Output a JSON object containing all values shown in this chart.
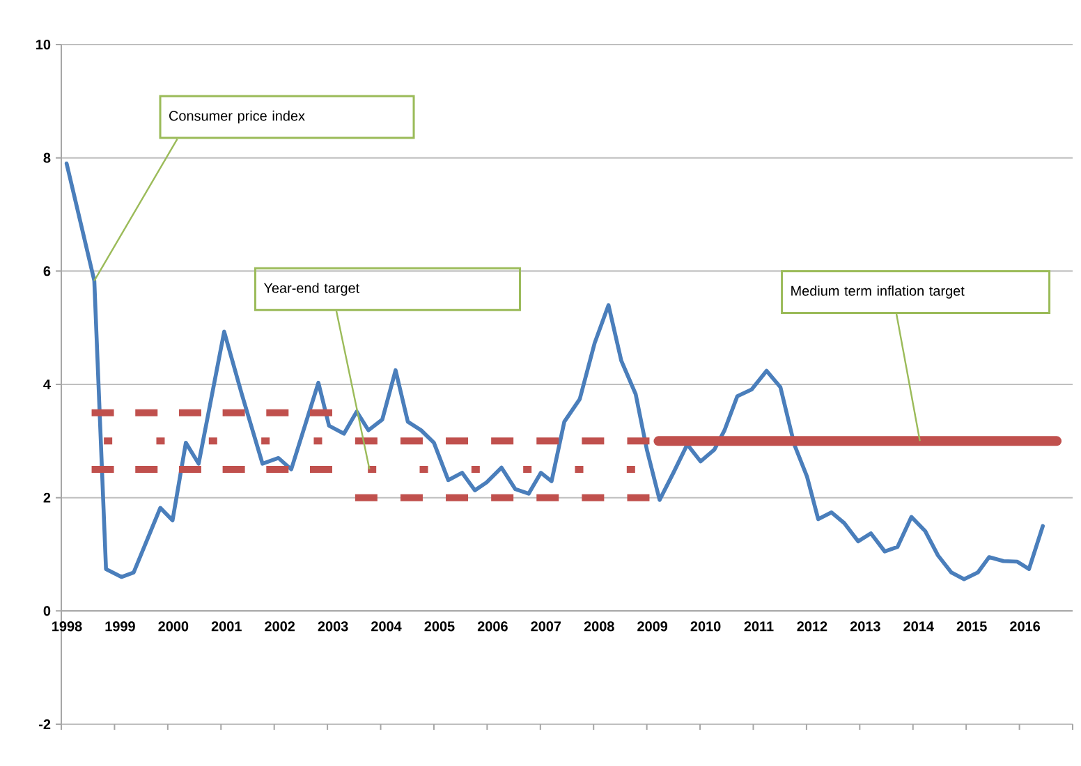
{
  "chart_data": {
    "type": "line",
    "xlim": [
      1998,
      2017
    ],
    "ylim": [
      -2,
      10
    ],
    "xticks": [
      1998,
      1999,
      2000,
      2001,
      2002,
      2003,
      2004,
      2005,
      2006,
      2007,
      2008,
      2009,
      2010,
      2011,
      2012,
      2013,
      2014,
      2015,
      2016,
      {
        "value": 2017,
        "label": null
      }
    ],
    "yticks": [
      -2,
      0,
      2,
      4,
      6,
      8,
      10
    ],
    "grid": "y",
    "series": [
      {
        "color": "#4a7ebb",
        "line_style": "solid",
        "x": [
          1998.1,
          1998.62,
          1998.84,
          1999.13,
          1999.36,
          1999.86,
          2000.09,
          2000.34,
          2000.58,
          2001.06,
          2001.39,
          2001.78,
          2002.08,
          2002.32,
          2002.83,
          2003.03,
          2003.31,
          2003.55,
          2003.77,
          2004.03,
          2004.28,
          2004.51,
          2004.76,
          2005.0,
          2005.27,
          2005.53,
          2005.77,
          2005.99,
          2006.27,
          2006.53,
          2006.78,
          2007.01,
          2007.21,
          2007.45,
          2007.74,
          2008.02,
          2008.28,
          2008.52,
          2008.79,
          2009.0,
          2009.24,
          2009.5,
          2009.76,
          2010.01,
          2010.27,
          2010.46,
          2010.7,
          2010.97,
          2011.25,
          2011.51,
          2011.77,
          2012.01,
          2012.22,
          2012.47,
          2012.71,
          2012.97,
          2013.21,
          2013.47,
          2013.71,
          2013.97,
          2014.23,
          2014.47,
          2014.72,
          2014.96,
          2015.22,
          2015.43,
          2015.7,
          2015.96,
          2016.18,
          2016.44
        ],
        "values": [
          7.9,
          5.83,
          0.74,
          0.6,
          0.68,
          1.82,
          1.6,
          2.97,
          2.6,
          4.93,
          3.83,
          2.6,
          2.7,
          2.5,
          4.03,
          3.27,
          3.13,
          3.52,
          3.19,
          3.38,
          4.25,
          3.34,
          3.19,
          2.97,
          2.31,
          2.44,
          2.13,
          2.27,
          2.53,
          2.15,
          2.07,
          2.44,
          2.29,
          3.34,
          3.74,
          4.73,
          5.4,
          4.42,
          3.83,
          2.85,
          1.96,
          2.44,
          2.94,
          2.64,
          2.85,
          3.19,
          3.79,
          3.91,
          4.24,
          3.95,
          2.94,
          2.37,
          1.62,
          1.74,
          1.55,
          1.23,
          1.37,
          1.05,
          1.13,
          1.66,
          1.41,
          0.98,
          0.68,
          0.56,
          0.68,
          0.95,
          0.88,
          0.87,
          0.74,
          1.5
        ]
      },
      {
        "color": "#c0504d",
        "line_style": "dashed",
        "x": [
          1998.57,
          2003.09
        ],
        "values": [
          3.5,
          3.5
        ]
      },
      {
        "color": "#c0504d",
        "line_style": "dotted",
        "x": [
          1998.8,
          2002.9
        ],
        "values": [
          3.0,
          3.0
        ]
      },
      {
        "color": "#c0504d",
        "line_style": "dashed",
        "x": [
          1998.57,
          2003.09
        ],
        "values": [
          2.5,
          2.5
        ]
      },
      {
        "color": "#c0504d",
        "line_style": "dashed",
        "x": [
          2003.52,
          2009.05
        ],
        "values": [
          3.0,
          3.0
        ]
      },
      {
        "color": "#c0504d",
        "line_style": "dotted",
        "x": [
          2003.76,
          2008.78
        ],
        "values": [
          2.5,
          2.5
        ]
      },
      {
        "color": "#c0504d",
        "line_style": "dashed",
        "x": [
          2003.52,
          2009.05
        ],
        "values": [
          2.0,
          2.0
        ]
      },
      {
        "color": "#c0504d",
        "line_style": "solid",
        "x": [
          2009.22,
          2016.7
        ],
        "values": [
          3.0,
          3.0
        ]
      }
    ],
    "annotations": [
      {
        "text": "Consumer price index",
        "x": 1998.62,
        "y": 5.83
      },
      {
        "text": "Year-end  target",
        "x": 2003.79,
        "y": 2.5
      },
      {
        "text": "Medium term inflation target",
        "x": 2014.13,
        "y": 3.0
      }
    ]
  }
}
